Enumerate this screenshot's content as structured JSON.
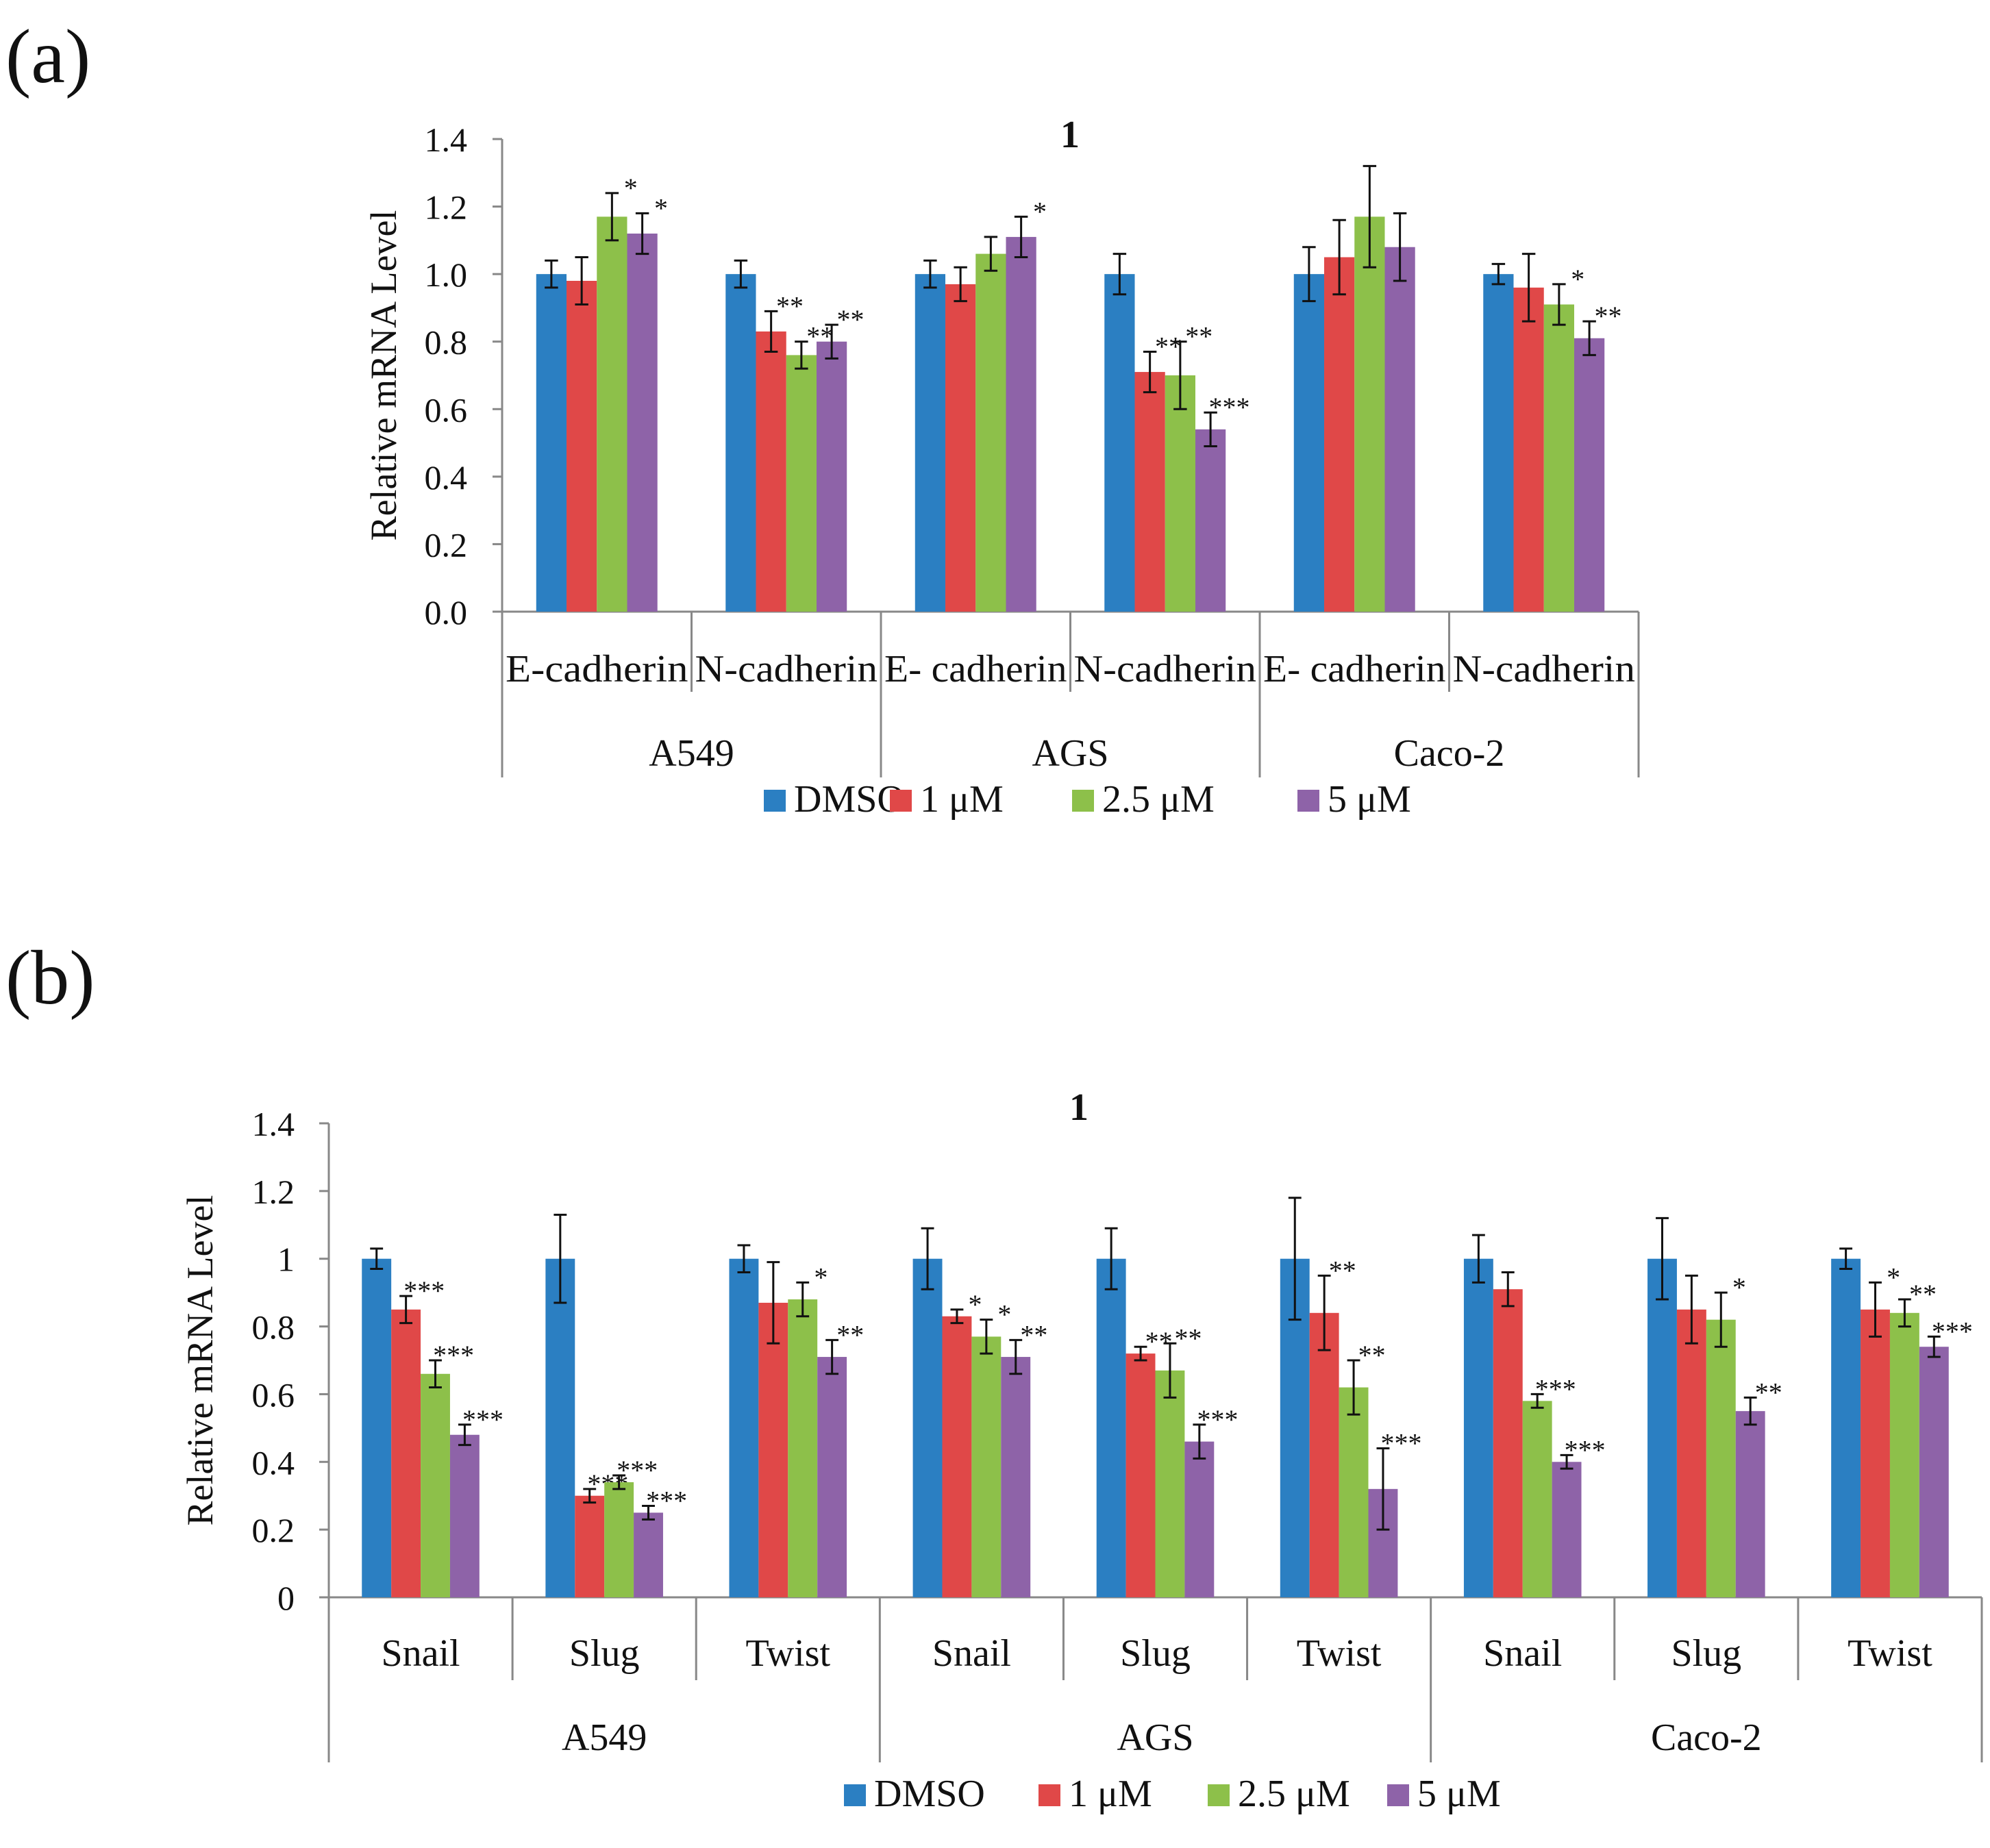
{
  "chart_data": [
    {
      "panel_label": "(a)",
      "type": "bar",
      "title": "1",
      "ylabel": "Relative mRNA Level",
      "xlabel": "",
      "ylim": [
        0,
        1.4
      ],
      "yticks": [
        "0.0",
        "0.2",
        "0.4",
        "0.6",
        "0.8",
        "1.0",
        "1.2",
        "1.4"
      ],
      "ytick_values": [
        0,
        0.2,
        0.4,
        0.6,
        0.8,
        1.0,
        1.2,
        1.4
      ],
      "categories": [
        "E-cadherin",
        "N-cadherin",
        "E- cadherin",
        "N-cadherin",
        "E- cadherin",
        "N-cadherin"
      ],
      "groups": [
        {
          "label": "A549",
          "span": 2
        },
        {
          "label": "AGS",
          "span": 2
        },
        {
          "label": "Caco-2",
          "span": 2
        }
      ],
      "legend_position": "bottom",
      "series": [
        {
          "name": "DMSO",
          "color": "#2b7fc2",
          "values": [
            1.0,
            1.0,
            1.0,
            1.0,
            1.0,
            1.0
          ],
          "errors": [
            0.04,
            0.04,
            0.04,
            0.06,
            0.08,
            0.03
          ],
          "significance": [
            "",
            "",
            "",
            "",
            "",
            ""
          ]
        },
        {
          "name": "1 μM",
          "color": "#e04848",
          "values": [
            0.98,
            0.83,
            0.97,
            0.71,
            1.05,
            0.96
          ],
          "errors": [
            0.07,
            0.06,
            0.05,
            0.06,
            0.11,
            0.1
          ],
          "significance": [
            "",
            "**",
            "",
            "**",
            "",
            ""
          ]
        },
        {
          "name": "2.5  μM",
          "color": "#8dc04a",
          "values": [
            1.17,
            0.76,
            1.06,
            0.7,
            1.17,
            0.91
          ],
          "errors": [
            0.07,
            0.04,
            0.05,
            0.1,
            0.15,
            0.06
          ],
          "significance": [
            "*",
            "**",
            "",
            "**",
            "",
            "*"
          ]
        },
        {
          "name": "5 μM",
          "color": "#8e63a8",
          "values": [
            1.12,
            0.8,
            1.11,
            0.54,
            1.08,
            0.81
          ],
          "errors": [
            0.06,
            0.05,
            0.06,
            0.05,
            0.1,
            0.05
          ],
          "significance": [
            "*",
            "**",
            "*",
            "***",
            "",
            "**"
          ]
        }
      ]
    },
    {
      "panel_label": "(b)",
      "type": "bar",
      "title": "1",
      "ylabel": "Relative mRNA Level",
      "xlabel": "",
      "ylim": [
        0,
        1.4
      ],
      "yticks": [
        "0",
        "0.2",
        "0.4",
        "0.6",
        "0.8",
        "1",
        "1.2",
        "1.4"
      ],
      "ytick_values": [
        0,
        0.2,
        0.4,
        0.6,
        0.8,
        1.0,
        1.2,
        1.4
      ],
      "categories": [
        "Snail",
        "Slug",
        "Twist",
        "Snail",
        "Slug",
        "Twist",
        "Snail",
        "Slug",
        "Twist"
      ],
      "groups": [
        {
          "label": "A549",
          "span": 3
        },
        {
          "label": "AGS",
          "span": 3
        },
        {
          "label": "Caco-2",
          "span": 3
        }
      ],
      "legend_position": "bottom",
      "series": [
        {
          "name": "DMSO",
          "color": "#2b7fc2",
          "values": [
            1.0,
            1.0,
            1.0,
            1.0,
            1.0,
            1.0,
            1.0,
            1.0,
            1.0
          ],
          "errors": [
            0.03,
            0.13,
            0.04,
            0.09,
            0.09,
            0.18,
            0.07,
            0.12,
            0.03
          ],
          "significance": [
            "",
            "",
            "",
            "",
            "",
            "",
            "",
            "",
            ""
          ]
        },
        {
          "name": "1 μM",
          "color": "#e04848",
          "values": [
            0.85,
            0.3,
            0.87,
            0.83,
            0.72,
            0.84,
            0.91,
            0.85,
            0.85
          ],
          "errors": [
            0.04,
            0.02,
            0.12,
            0.02,
            0.02,
            0.11,
            0.05,
            0.1,
            0.08
          ],
          "significance": [
            "***",
            "***",
            "",
            "*",
            "**",
            "**",
            "",
            "",
            "*"
          ]
        },
        {
          "name": "2.5 μM",
          "color": "#8dc04a",
          "values": [
            0.66,
            0.34,
            0.88,
            0.77,
            0.67,
            0.62,
            0.58,
            0.82,
            0.84
          ],
          "errors": [
            0.04,
            0.02,
            0.05,
            0.05,
            0.08,
            0.08,
            0.02,
            0.08,
            0.04
          ],
          "significance": [
            "***",
            "***",
            "*",
            "*",
            "**",
            "**",
            "***",
            "*",
            "**"
          ]
        },
        {
          "name": "5 μM",
          "color": "#8e63a8",
          "values": [
            0.48,
            0.25,
            0.71,
            0.71,
            0.46,
            0.32,
            0.4,
            0.55,
            0.74
          ],
          "errors": [
            0.03,
            0.02,
            0.05,
            0.05,
            0.05,
            0.12,
            0.02,
            0.04,
            0.03
          ],
          "significance": [
            "***",
            "***",
            "**",
            "**",
            "***",
            "***",
            "***",
            "**",
            "***"
          ]
        }
      ]
    }
  ]
}
